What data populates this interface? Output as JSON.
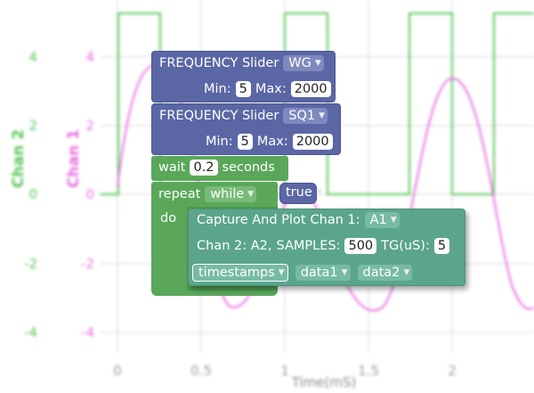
{
  "plot": {
    "chan2_label": "Chan 2",
    "chan1_label": "Chan 1",
    "x_label": "Time(mS)",
    "y_ticks": [
      "4",
      "2",
      "0",
      "-2",
      "-4"
    ],
    "x_ticks": [
      "0",
      "0.5",
      "1",
      "1.5",
      "2"
    ],
    "colors": {
      "chan1": "#e86ee0",
      "chan2": "#57c457",
      "grid": "#d6d6d6"
    }
  },
  "blocks": {
    "slider1": {
      "prefix": "FREQUENCY Slider",
      "name": "WG",
      "min_label": "Min:",
      "min": "5",
      "max_label": "Max:",
      "max": "2000"
    },
    "slider2": {
      "prefix": "FREQUENCY Slider",
      "name": "SQ1",
      "min_label": "Min:",
      "min": "5",
      "max_label": "Max:",
      "max": "2000"
    },
    "wait": {
      "label": "wait",
      "value": "0.2",
      "unit": "seconds"
    },
    "repeat": {
      "label": "repeat",
      "mode": "while",
      "condition": "true",
      "do_label": "do"
    },
    "capture": {
      "title": "Capture And Plot",
      "chan1_label": "Chan 1:",
      "chan1_value": "A1",
      "line2": "Chan 2: A2,",
      "samples_label": "SAMPLES:",
      "samples": "500",
      "tg_label": "TG(uS):",
      "tg": "5",
      "out1": "timestamps",
      "out2": "data1",
      "out3": "data2"
    },
    "colors": {
      "blue": "#5b67a5",
      "green": "#5aa75a",
      "teal": "#5ba58c"
    }
  }
}
